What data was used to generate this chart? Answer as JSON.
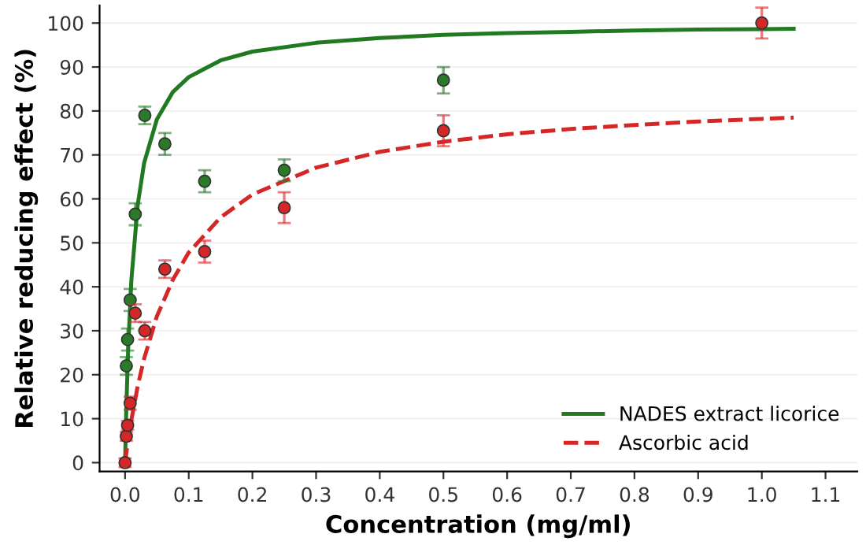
{
  "chart_data": {
    "type": "scatter",
    "xlabel": "Concentration (mg/ml)",
    "ylabel": "Relative reducing effect (%)",
    "xlim": [
      -0.04,
      1.15
    ],
    "ylim": [
      -2,
      104
    ],
    "xticks": [
      {
        "value": 0,
        "label": "0.0"
      },
      0.1,
      0.2,
      0.3,
      0.4,
      0.5,
      0.6,
      0.7,
      0.8,
      0.9,
      {
        "value": 1,
        "label": "1.0"
      },
      1.1
    ],
    "yticks": [
      0,
      10,
      20,
      30,
      40,
      50,
      60,
      70,
      80,
      90,
      100
    ],
    "grid": "y",
    "legend": "bottom right",
    "marker": "circle",
    "series": [
      {
        "name": "NADES extract licorice",
        "type": "line",
        "marker": "none",
        "line_style": "solid",
        "color": "#217a21",
        "x": [
          0,
          0.002,
          0.005,
          0.01,
          0.02,
          0.03,
          0.05,
          0.075,
          0.1,
          0.15,
          0.2,
          0.3,
          0.4,
          0.5,
          0.6,
          0.7,
          0.8,
          0.9,
          1.0,
          1.05
        ],
        "values": [
          0,
          12.5,
          26.3,
          41.7,
          58.8,
          68.2,
          78.1,
          84.3,
          87.7,
          91.5,
          93.5,
          95.5,
          96.6,
          97.3,
          97.7,
          98.0,
          98.3,
          98.5,
          98.6,
          98.7
        ]
      },
      {
        "name": "Ascorbic acid",
        "type": "line",
        "marker": "none",
        "line_style": "dashed",
        "color": "#d62728",
        "x": [
          0,
          0.002,
          0.005,
          0.01,
          0.02,
          0.03,
          0.05,
          0.075,
          0.1,
          0.15,
          0.2,
          0.3,
          0.4,
          0.5,
          0.6,
          0.7,
          0.8,
          0.9,
          1.0,
          1.05
        ],
        "values": [
          0,
          2.2,
          5.2,
          9.8,
          17.5,
          23.7,
          33.3,
          41.6,
          47.8,
          55.8,
          61.0,
          67.1,
          70.7,
          73.0,
          74.7,
          75.9,
          76.8,
          77.6,
          78.2,
          78.5
        ]
      },
      {
        "color": "#2a7a2a",
        "x": [
          0.002,
          0.004,
          0.008,
          0.016,
          0.031,
          0.0625,
          0.125,
          0.25,
          0.5
        ],
        "values": [
          22,
          28,
          37,
          56.5,
          79,
          72.5,
          64,
          66.5,
          87
        ],
        "errors": [
          2,
          2.5,
          2.5,
          2.5,
          2,
          2.5,
          2.5,
          2.5,
          3
        ]
      },
      {
        "color": "#d62728",
        "x": [
          0,
          0.002,
          0.004,
          0.008,
          0.016,
          0.031,
          0.0625,
          0.125,
          0.25,
          0.5,
          1.0
        ],
        "values": [
          0,
          6,
          8.5,
          13.5,
          34,
          30,
          44,
          48,
          58,
          75.5,
          100
        ],
        "errors": [
          1,
          1,
          1,
          1.5,
          2,
          2,
          2,
          2.5,
          3.5,
          3.5,
          3.5
        ]
      }
    ]
  }
}
